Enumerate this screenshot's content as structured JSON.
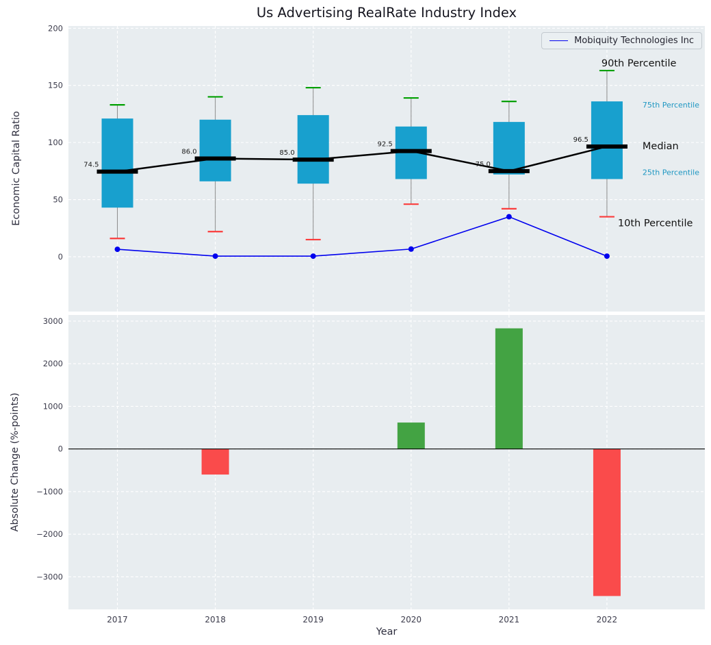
{
  "title": "Us Advertising RealRate Industry Index",
  "legend": {
    "series_label": "Mobiquity Technologies Inc"
  },
  "axes": {
    "top_ylabel": "Economic Capital Ratio",
    "bottom_ylabel": "Absolute Change (%-points)",
    "xlabel": "Year"
  },
  "colors": {
    "plot_bg": "#e8edf0",
    "grid": "#ffffff",
    "box_fill": "#18a0ce",
    "whisker": "#8a8a8a",
    "cap_high": "#00a000",
    "cap_low": "#fb3b3b",
    "median": "#000000",
    "company_line": "#0000ee",
    "bar_positive": "#43a343",
    "bar_negative": "#fa4b4b",
    "tick_label": "#3b3b4b",
    "pct_label_dark": "#111111",
    "pct_label_blue": "#1f97c2",
    "median_value_label": "#1a1a1a"
  },
  "chart_data": [
    {
      "type": "boxplot",
      "title": "Us Advertising RealRate Industry Index",
      "ylabel": "Economic Capital Ratio",
      "ylim": [
        -48,
        202
      ],
      "yticks": [
        0,
        50,
        100,
        150,
        200
      ],
      "grid": true,
      "categories": [
        2017,
        2018,
        2019,
        2020,
        2021,
        2022
      ],
      "company_series_name": "Mobiquity Technologies Inc",
      "series": [
        {
          "name": "10th Percentile",
          "values": [
            16,
            22,
            15,
            46,
            42,
            35
          ]
        },
        {
          "name": "25th Percentile",
          "values": [
            43,
            66,
            64,
            68,
            72,
            68
          ]
        },
        {
          "name": "Median",
          "values": [
            74.5,
            86.0,
            85.0,
            92.5,
            75.0,
            96.5
          ]
        },
        {
          "name": "75th Percentile",
          "values": [
            121,
            120,
            124,
            114,
            118,
            136
          ]
        },
        {
          "name": "90th Percentile",
          "values": [
            133,
            140,
            148,
            139,
            136,
            163
          ]
        },
        {
          "name": "Mobiquity Technologies Inc",
          "values": [
            6.5,
            0.5,
            0.5,
            6.7,
            35,
            0.5
          ]
        }
      ],
      "median_labels": [
        "74.5",
        "86.0",
        "85.0",
        "92.5",
        "75.0",
        "96.5"
      ],
      "side_labels": [
        "90th Percentile",
        "75th Percentile",
        "Median",
        "25th Percentile",
        "10th Percentile"
      ],
      "legend_entries": [
        "Mobiquity Technologies Inc"
      ],
      "legend_position": "upper right"
    },
    {
      "type": "bar",
      "ylabel": "Absolute Change (%-points)",
      "xlabel": "Year",
      "ylim": [
        -3764,
        3144
      ],
      "yticks": [
        -3000,
        -2000,
        -1000,
        0,
        1000,
        2000,
        3000
      ],
      "grid": true,
      "categories": [
        2017,
        2018,
        2019,
        2020,
        2021,
        2022
      ],
      "values": [
        0,
        -600,
        0,
        620,
        2830,
        -3450
      ]
    }
  ]
}
